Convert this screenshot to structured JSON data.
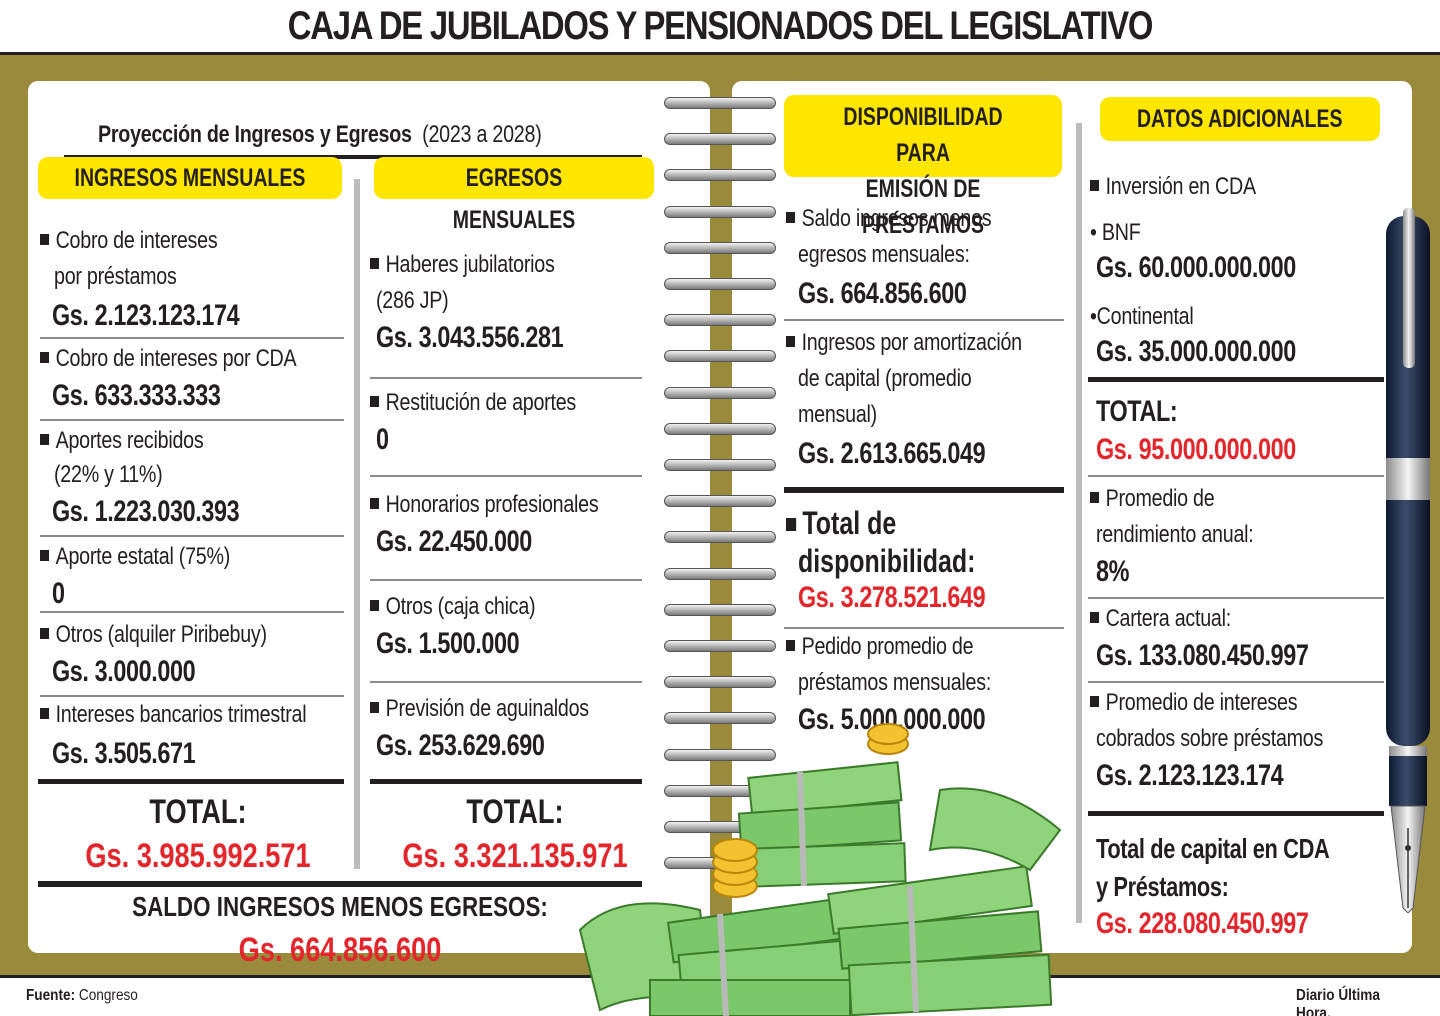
{
  "title": "CAJA DE JUBILADOS Y PENSIONADOS DEL LEGISLATIVO",
  "projection": {
    "label": "Proyección de Ingresos y Egresos",
    "range": "(2023 a 2028)"
  },
  "ingresos": {
    "header": "INGRESOS MENSUALES",
    "items": [
      {
        "line1": "Cobro de intereses",
        "line2": "por préstamos",
        "value": "Gs. 2.123.123.174"
      },
      {
        "line1": "Cobro de intereses por CDA",
        "value": "Gs. 633.333.333"
      },
      {
        "line1": "Aportes recibidos",
        "line2": "(22% y 11%)",
        "value": "Gs. 1.223.030.393"
      },
      {
        "line1": "Aporte estatal (75%)",
        "value": "0"
      },
      {
        "line1": "Otros (alquiler Piribebuy)",
        "value": "Gs. 3.000.000"
      },
      {
        "line1": "Intereses bancarios trimestral",
        "value": "Gs. 3.505.671"
      }
    ],
    "total_label": "TOTAL:",
    "total_value": "Gs.  3.985.992.571"
  },
  "egresos": {
    "header": "EGRESOS MENSUALES",
    "items": [
      {
        "line1": "Haberes jubilatorios",
        "line2": "(286 JP)",
        "value": "Gs. 3.043.556.281"
      },
      {
        "line1": "Restitución de aportes",
        "value": "0"
      },
      {
        "line1": "Honorarios profesionales",
        "value": "Gs. 22.450.000"
      },
      {
        "line1": "Otros (caja chica)",
        "value": "Gs. 1.500.000"
      },
      {
        "line1": "Previsión de aguinaldos",
        "value": "Gs. 253.629.690"
      }
    ],
    "total_label": "TOTAL:",
    "total_value": "Gs. 3.321.135.971"
  },
  "saldo": {
    "label": "SALDO INGRESOS MENOS EGRESOS:",
    "value": "Gs. 664.856.600"
  },
  "disponibilidad": {
    "header_line1": "DISPONIBILIDAD PARA",
    "header_line2": "EMISIÓN DE PRÉSTAMOS",
    "saldo_line1": "Saldo ingresos menos",
    "saldo_line2": "egresos mensuales:",
    "saldo_value": "Gs. 664.856.600",
    "amort_line1": "Ingresos por amortización",
    "amort_line2": "de capital (promedio",
    "amort_line3": "mensual)",
    "amort_value": "Gs. 2.613.665.049",
    "total_line1": "Total de",
    "total_line2": "disponibilidad:",
    "total_value": "Gs. 3.278.521.649",
    "pedido_line1": "Pedido promedio de",
    "pedido_line2": "préstamos mensuales:",
    "pedido_value": "Gs. 5.000.000.000"
  },
  "adicionales": {
    "header": "DATOS ADICIONALES",
    "inversion": "Inversión en CDA",
    "bnf_label": "BNF",
    "bnf_value": "Gs. 60.000.000.000",
    "cont_label": "Continental",
    "cont_value": "Gs. 35.000.000.000",
    "total_label": "TOTAL:",
    "total_value": "Gs. 95.000.000.000",
    "rend_line1": "Promedio de",
    "rend_line2": "rendimiento anual:",
    "rend_value": "8%",
    "cartera_label": "Cartera actual:",
    "cartera_value": "Gs. 133.080.450.997",
    "prom_line1": "Promedio de intereses",
    "prom_line2": "cobrados sobre préstamos",
    "prom_value": "Gs. 2.123.123.174",
    "cap_line1": "Total de capital en CDA",
    "cap_line2": "y Préstamos:",
    "cap_value": "Gs. 228.080.450.997"
  },
  "footer": {
    "source_label": "Fuente:",
    "source": "Congreso",
    "credit": "Diario Última Hora."
  },
  "colors": {
    "frame": "#9a8a3c",
    "highlight": "#ffe600",
    "accent_red": "#e3262c",
    "text": "#231f20"
  },
  "icons": [
    "spiral-binding",
    "fountain-pen-icon",
    "money-stack-icon"
  ]
}
